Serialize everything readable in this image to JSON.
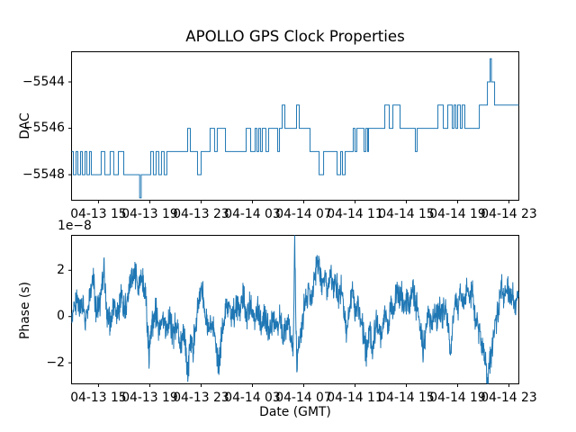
{
  "figure": {
    "title": "APOLLO GPS Clock Properties",
    "xlabel": "Date (GMT)",
    "top_ylabel": "DAC",
    "bottom_ylabel": "Phase (s)",
    "offset_text": "1e−8",
    "background_color": "#ffffff",
    "text_color": "#000000",
    "spine_color": "#000000",
    "line_color": "#1f77b4"
  },
  "chart_data": [
    {
      "type": "line",
      "name": "dac-step-plot",
      "drawstyle": "steps-post",
      "title": "APOLLO GPS Clock Properties",
      "ylabel": "DAC",
      "grid": false,
      "legend": "none",
      "x_hours_reference": "hours after 04-13 00:00 GMT (read from tick labels)",
      "xlim_hours": [
        12.9,
        47.77
      ],
      "ylim": [
        -5549.1,
        -5542.7
      ],
      "yticks": [
        -5548,
        -5546,
        -5544
      ],
      "ytick_labels": [
        "−5548",
        "−5546",
        "−5544"
      ],
      "xticks_hours": [
        15,
        19,
        23,
        27,
        31,
        35,
        39,
        43,
        47
      ],
      "xtick_labels": [
        "04-13 15",
        "04-13 19",
        "04-13 23",
        "04-14 03",
        "04-14 07",
        "04-14 11",
        "04-14 15",
        "04-14 19",
        "04-14 23"
      ],
      "steps": [
        [
          12.9,
          -5547
        ],
        [
          13.04,
          -5548
        ],
        [
          13.25,
          -5547
        ],
        [
          13.39,
          -5548
        ],
        [
          13.6,
          -5547
        ],
        [
          13.74,
          -5548
        ],
        [
          13.95,
          -5547
        ],
        [
          14.09,
          -5548
        ],
        [
          14.3,
          -5547
        ],
        [
          14.44,
          -5548
        ],
        [
          15.21,
          -5547
        ],
        [
          15.49,
          -5548
        ],
        [
          15.91,
          -5547
        ],
        [
          16.19,
          -5548
        ],
        [
          16.55,
          -5547
        ],
        [
          16.97,
          -5548
        ],
        [
          18.21,
          -5549
        ],
        [
          18.33,
          -5548
        ],
        [
          19.07,
          -5547
        ],
        [
          19.28,
          -5548
        ],
        [
          19.49,
          -5547
        ],
        [
          19.7,
          -5548
        ],
        [
          19.91,
          -5547
        ],
        [
          20.12,
          -5548
        ],
        [
          20.33,
          -5547
        ],
        [
          21.95,
          -5546
        ],
        [
          22.16,
          -5547
        ],
        [
          22.72,
          -5548
        ],
        [
          23.0,
          -5547
        ],
        [
          23.7,
          -5546
        ],
        [
          24.05,
          -5547
        ],
        [
          24.26,
          -5546
        ],
        [
          24.9,
          -5547
        ],
        [
          26.51,
          -5546
        ],
        [
          26.86,
          -5547
        ],
        [
          27.21,
          -5546
        ],
        [
          27.35,
          -5547
        ],
        [
          27.49,
          -5546
        ],
        [
          27.63,
          -5547
        ],
        [
          27.77,
          -5546
        ],
        [
          28.05,
          -5547
        ],
        [
          28.26,
          -5546
        ],
        [
          28.97,
          -5547
        ],
        [
          29.11,
          -5546
        ],
        [
          29.32,
          -5545
        ],
        [
          29.53,
          -5546
        ],
        [
          30.44,
          -5545
        ],
        [
          30.65,
          -5546
        ],
        [
          31.49,
          -5547
        ],
        [
          32.2,
          -5548
        ],
        [
          32.55,
          -5547
        ],
        [
          33.6,
          -5548
        ],
        [
          33.88,
          -5547
        ],
        [
          34.02,
          -5548
        ],
        [
          34.23,
          -5547
        ],
        [
          34.86,
          -5546
        ],
        [
          35.0,
          -5547
        ],
        [
          35.14,
          -5546
        ],
        [
          35.7,
          -5547
        ],
        [
          35.84,
          -5546
        ],
        [
          35.98,
          -5547
        ],
        [
          36.05,
          -5546
        ],
        [
          37.32,
          -5545
        ],
        [
          37.67,
          -5546
        ],
        [
          37.95,
          -5545
        ],
        [
          38.51,
          -5546
        ],
        [
          39.7,
          -5547
        ],
        [
          39.84,
          -5546
        ],
        [
          41.46,
          -5545
        ],
        [
          41.88,
          -5546
        ],
        [
          42.23,
          -5545
        ],
        [
          42.58,
          -5546
        ],
        [
          42.72,
          -5545
        ],
        [
          42.86,
          -5546
        ],
        [
          43.0,
          -5545
        ],
        [
          43.21,
          -5546
        ],
        [
          43.35,
          -5545
        ],
        [
          43.56,
          -5546
        ],
        [
          44.69,
          -5545
        ],
        [
          45.32,
          -5544
        ],
        [
          45.53,
          -5543
        ],
        [
          45.63,
          -5544
        ],
        [
          45.88,
          -5545
        ],
        [
          47.77,
          -5545
        ]
      ]
    },
    {
      "type": "line",
      "name": "phase-plot",
      "ylabel": "Phase (s)",
      "xlabel": "Date (GMT)",
      "offset_text": "1e−8",
      "value_scale": "1e-8 s",
      "grid": false,
      "legend": "none",
      "x_hours_reference": "hours after 04-13 00:00 GMT (read from tick labels)",
      "xlim_hours": [
        12.9,
        47.77
      ],
      "ylim_e8": [
        -2.91,
        3.51
      ],
      "yticks_e8": [
        -2,
        0,
        2
      ],
      "ytick_labels": [
        "−2",
        "0",
        "2"
      ],
      "xticks_hours": [
        15,
        19,
        23,
        27,
        31,
        35,
        39,
        43,
        47
      ],
      "xtick_labels": [
        "04-13 15",
        "04-13 19",
        "04-13 23",
        "04-14 03",
        "04-14 07",
        "04-14 11",
        "04-14 15",
        "04-14 19",
        "04-14 23"
      ],
      "anchors_e8": [
        [
          12.9,
          -0.3
        ],
        [
          13.11,
          0.4
        ],
        [
          13.32,
          0.8
        ],
        [
          13.53,
          0.1
        ],
        [
          13.81,
          0.5
        ],
        [
          14.02,
          -0.2
        ],
        [
          14.23,
          0.3
        ],
        [
          14.58,
          1.9
        ],
        [
          14.79,
          0.2
        ],
        [
          15.07,
          0.4
        ],
        [
          15.42,
          2.0
        ],
        [
          15.63,
          0.3
        ],
        [
          15.91,
          -0.4
        ],
        [
          16.19,
          0.6
        ],
        [
          16.47,
          0.0
        ],
        [
          16.75,
          0.7
        ],
        [
          17.04,
          0.2
        ],
        [
          17.32,
          1.0
        ],
        [
          17.6,
          1.6
        ],
        [
          17.81,
          2.05
        ],
        [
          18.02,
          1.4
        ],
        [
          18.23,
          1.5
        ],
        [
          18.44,
          1.6
        ],
        [
          18.65,
          0.9
        ],
        [
          18.79,
          -0.3
        ],
        [
          18.93,
          -1.6
        ],
        [
          19.14,
          -0.4
        ],
        [
          19.42,
          0.3
        ],
        [
          19.7,
          -0.5
        ],
        [
          19.98,
          0.2
        ],
        [
          20.26,
          -0.6
        ],
        [
          20.54,
          0.0
        ],
        [
          20.83,
          -0.8
        ],
        [
          21.11,
          -0.3
        ],
        [
          21.39,
          -1.2
        ],
        [
          21.67,
          -0.7
        ],
        [
          21.95,
          -2.6
        ],
        [
          22.16,
          -1.0
        ],
        [
          22.37,
          -1.5
        ],
        [
          22.58,
          -0.4
        ],
        [
          22.79,
          0.6
        ],
        [
          23.0,
          1.4
        ],
        [
          23.21,
          0.6
        ],
        [
          23.42,
          -0.2
        ],
        [
          23.63,
          -0.7
        ],
        [
          23.91,
          -0.2
        ],
        [
          24.12,
          -1.0
        ],
        [
          24.4,
          -2.3
        ],
        [
          24.61,
          -0.8
        ],
        [
          24.9,
          0.2
        ],
        [
          25.18,
          0.6
        ],
        [
          25.46,
          -0.1
        ],
        [
          25.74,
          0.5
        ],
        [
          26.02,
          0.3
        ],
        [
          26.3,
          0.8
        ],
        [
          26.58,
          0.1
        ],
        [
          26.86,
          0.5
        ],
        [
          27.14,
          -0.1
        ],
        [
          27.42,
          0.4
        ],
        [
          27.7,
          -0.4
        ],
        [
          27.98,
          0.1
        ],
        [
          28.26,
          -0.6
        ],
        [
          28.55,
          -0.1
        ],
        [
          28.83,
          -0.5
        ],
        [
          29.11,
          0.0
        ],
        [
          29.39,
          -0.9
        ],
        [
          29.67,
          -0.2
        ],
        [
          29.95,
          -0.5
        ],
        [
          30.16,
          -1.9
        ],
        [
          30.3,
          3.4
        ],
        [
          30.44,
          -1.9
        ],
        [
          30.65,
          -1.2
        ],
        [
          30.86,
          -0.3
        ],
        [
          31.07,
          0.6
        ],
        [
          31.28,
          1.1
        ],
        [
          31.49,
          0.7
        ],
        [
          31.77,
          1.3
        ],
        [
          32.06,
          2.5
        ],
        [
          32.27,
          1.7
        ],
        [
          32.48,
          1.2
        ],
        [
          32.69,
          1.8
        ],
        [
          32.9,
          1.0
        ],
        [
          33.11,
          1.9
        ],
        [
          33.32,
          1.1
        ],
        [
          33.53,
          1.5
        ],
        [
          33.74,
          0.8
        ],
        [
          33.95,
          1.2
        ],
        [
          34.16,
          0.4
        ],
        [
          34.37,
          -1.0
        ],
        [
          34.58,
          0.5
        ],
        [
          34.79,
          0.9
        ],
        [
          35.0,
          0.1
        ],
        [
          35.21,
          0.6
        ],
        [
          35.42,
          -0.2
        ],
        [
          35.63,
          -0.6
        ],
        [
          35.91,
          -1.7
        ],
        [
          36.12,
          -0.4
        ],
        [
          36.33,
          -1.8
        ],
        [
          36.54,
          -0.6
        ],
        [
          36.75,
          -0.3
        ],
        [
          36.96,
          -0.9
        ],
        [
          37.17,
          -0.4
        ],
        [
          37.38,
          0.2
        ],
        [
          37.6,
          -0.5
        ],
        [
          37.81,
          0.5
        ],
        [
          38.02,
          0.0
        ],
        [
          38.23,
          1.3
        ],
        [
          38.44,
          0.6
        ],
        [
          38.65,
          1.0
        ],
        [
          38.86,
          0.4
        ],
        [
          39.07,
          0.9
        ],
        [
          39.28,
          0.3
        ],
        [
          39.49,
          1.3
        ],
        [
          39.7,
          0.6
        ],
        [
          39.91,
          0.1
        ],
        [
          40.12,
          -0.6
        ],
        [
          40.33,
          -1.4
        ],
        [
          40.54,
          -0.5
        ],
        [
          40.75,
          0.1
        ],
        [
          40.96,
          -0.4
        ],
        [
          41.17,
          0.3
        ],
        [
          41.39,
          -0.2
        ],
        [
          41.6,
          0.4
        ],
        [
          41.81,
          -0.1
        ],
        [
          42.02,
          0.5
        ],
        [
          42.23,
          -0.3
        ],
        [
          42.44,
          -1.7
        ],
        [
          42.65,
          0.0
        ],
        [
          42.86,
          0.7
        ],
        [
          43.07,
          0.3
        ],
        [
          43.28,
          1.0
        ],
        [
          43.49,
          0.5
        ],
        [
          43.7,
          1.2
        ],
        [
          43.91,
          0.7
        ],
        [
          44.12,
          1.1
        ],
        [
          44.33,
          0.2
        ],
        [
          44.54,
          -0.3
        ],
        [
          44.75,
          -0.8
        ],
        [
          44.97,
          -1.5
        ],
        [
          45.18,
          -2.2
        ],
        [
          45.39,
          -2.5
        ],
        [
          45.6,
          -1.8
        ],
        [
          45.81,
          -0.9
        ],
        [
          46.02,
          0.0
        ],
        [
          46.23,
          0.7
        ],
        [
          46.44,
          1.2
        ],
        [
          46.65,
          0.8
        ],
        [
          46.86,
          1.3
        ],
        [
          47.07,
          0.6
        ],
        [
          47.28,
          1.0
        ],
        [
          47.49,
          0.5
        ],
        [
          47.7,
          0.9
        ]
      ],
      "noise_amplitude_e8": 0.8,
      "noise_seed": 9,
      "samples_per_hour": 50
    }
  ]
}
